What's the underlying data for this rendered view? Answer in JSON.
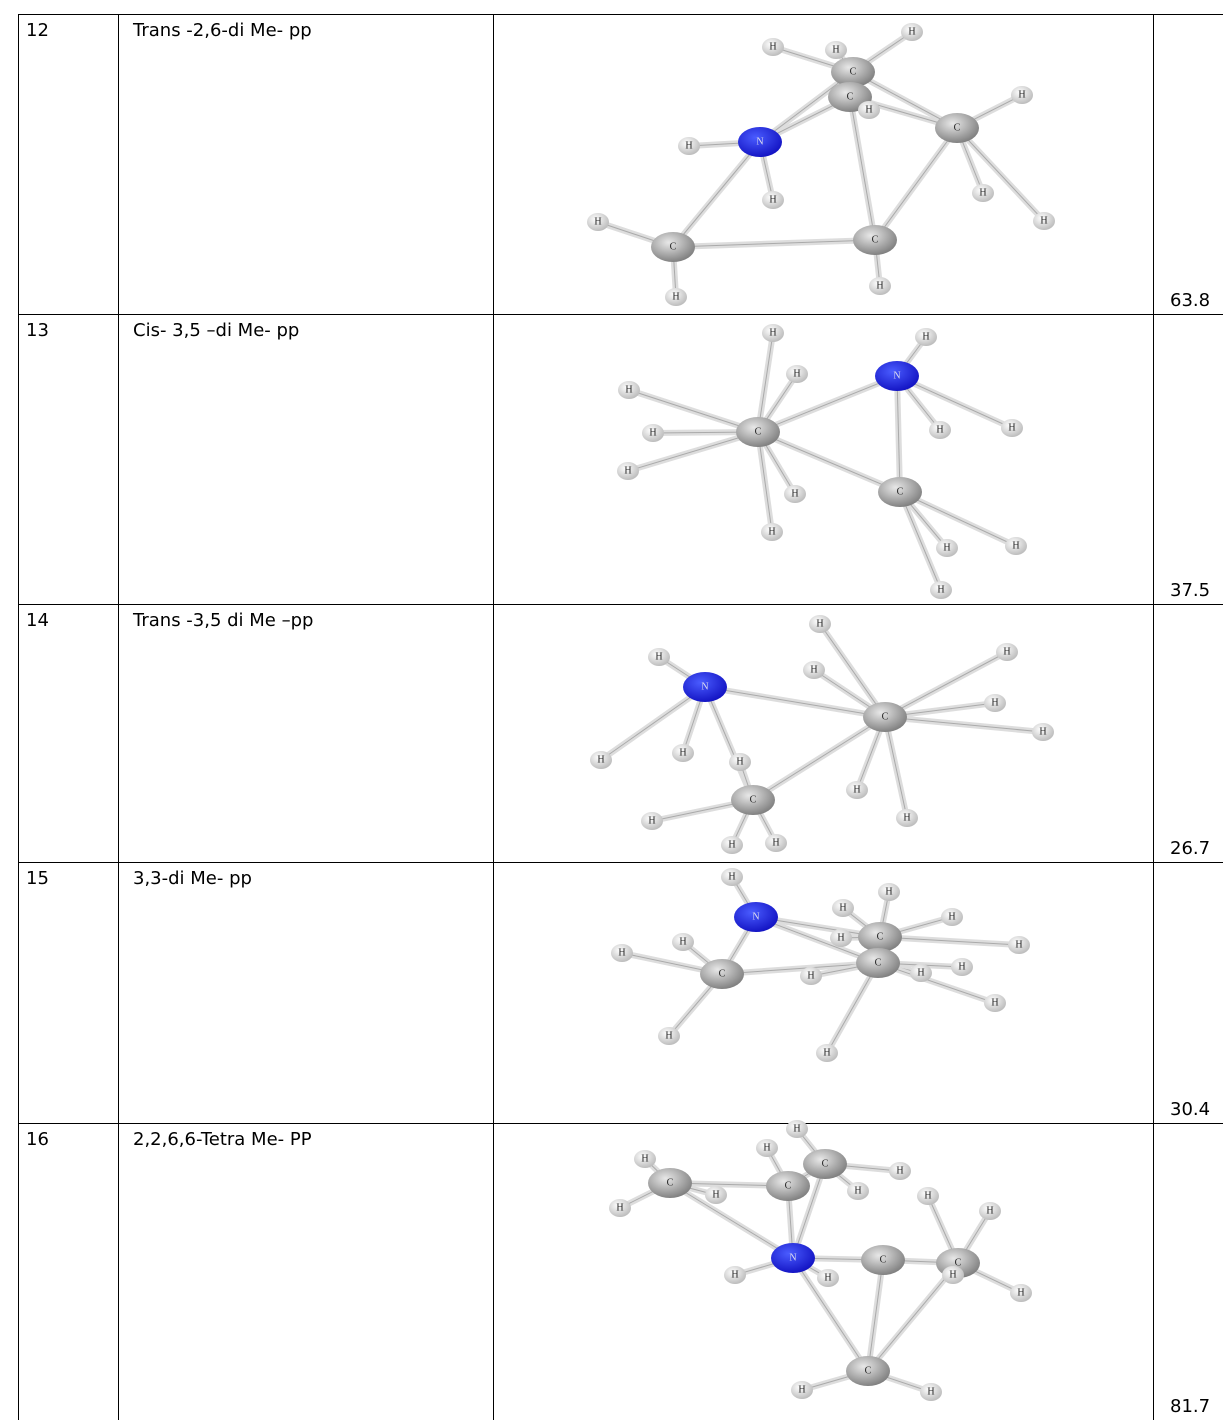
{
  "table": {
    "rows": [
      {
        "no": "12",
        "name": "Trans -2,6-di Me- pp",
        "value": 63.8,
        "atoms": [
          "H",
          "H",
          "H",
          "C",
          "C",
          "H",
          "H",
          "C",
          "H",
          "N",
          "H",
          "H",
          "H",
          "H",
          "C",
          "C",
          "H",
          "H"
        ]
      },
      {
        "no": "13",
        "name": "Cis- 3,5 –di Me- pp",
        "value": 37.5,
        "atoms": [
          "H",
          "H",
          "H",
          "N",
          "H",
          "H",
          "C",
          "H",
          "H",
          "H",
          "H",
          "C",
          "H",
          "H",
          "H",
          "H"
        ]
      },
      {
        "no": "14",
        "name": "Trans -3,5 di Me –pp",
        "value": 26.7,
        "atoms": [
          "H",
          "H",
          "H",
          "H",
          "N",
          "C",
          "H",
          "H",
          "H",
          "H",
          "H",
          "C",
          "H",
          "H",
          "H",
          "H",
          "H"
        ]
      },
      {
        "no": "15",
        "name": "3,3-di Me- pp",
        "value": 30.4,
        "atoms": [
          "H",
          "H",
          "N",
          "H",
          "H",
          "H",
          "H",
          "H",
          "C",
          "H",
          "C",
          "H",
          "H",
          "C",
          "H",
          "H",
          "H",
          "H"
        ]
      },
      {
        "no": "16",
        "name": "2,2,6,6-Tetra Me- PP",
        "value": 81.7,
        "atoms": [
          "H",
          "H",
          "H",
          "C",
          "H",
          "C",
          "C",
          "H",
          "H",
          "H",
          "H",
          "H",
          "N",
          "C",
          "C",
          "H",
          "H",
          "H",
          "H",
          "C",
          "H",
          "H"
        ]
      }
    ]
  }
}
